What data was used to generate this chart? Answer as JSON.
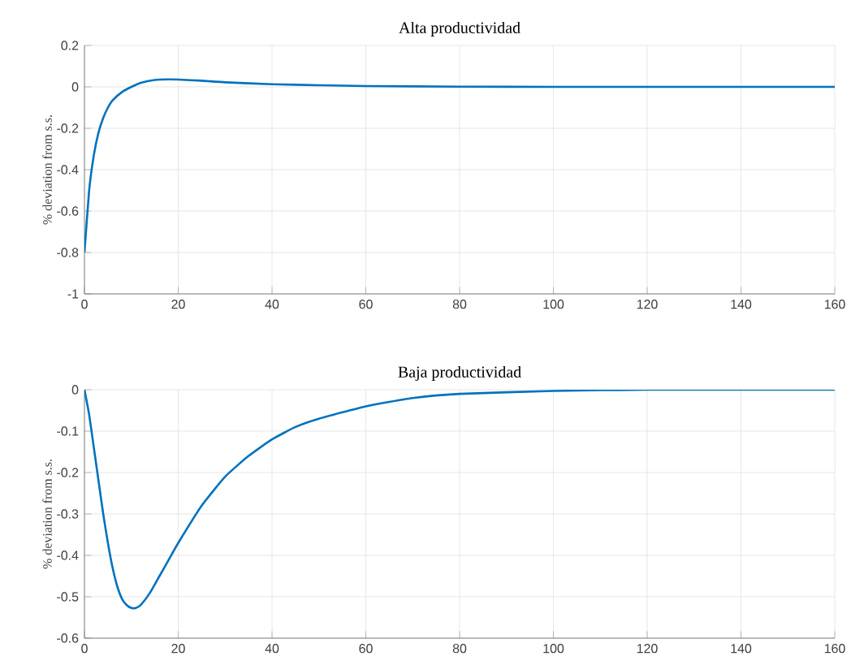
{
  "chart_data": [
    {
      "type": "line",
      "title": "Alta productividad",
      "ylabel": "% deviation from s.s.",
      "x": [
        0,
        1,
        2,
        3,
        4,
        5,
        6,
        8,
        10,
        12,
        15,
        18,
        20,
        25,
        30,
        40,
        50,
        60,
        80,
        100,
        120,
        160
      ],
      "series": [
        {
          "color": "#0072bd",
          "values": [
            -0.8,
            -0.5,
            -0.33,
            -0.22,
            -0.15,
            -0.1,
            -0.065,
            -0.025,
            0.0,
            0.02,
            0.033,
            0.036,
            0.035,
            0.03,
            0.022,
            0.013,
            0.008,
            0.004,
            0.001,
            0,
            0,
            0
          ]
        }
      ],
      "xlim": [
        0,
        160
      ],
      "ylim": [
        -1,
        0.2
      ],
      "xticks": [
        0,
        20,
        40,
        60,
        80,
        100,
        120,
        140,
        160
      ],
      "yticks": [
        -1,
        -0.8,
        -0.6,
        -0.4,
        -0.2,
        0,
        0.2
      ],
      "grid": true,
      "line_style": "solid"
    },
    {
      "type": "line",
      "title": "Baja productividad",
      "ylabel": "% deviation from s.s.",
      "x": [
        0,
        1,
        2,
        3,
        4,
        5,
        6,
        7,
        8,
        9,
        10,
        11,
        12,
        14,
        16,
        18,
        20,
        25,
        30,
        35,
        40,
        45,
        50,
        60,
        70,
        80,
        100,
        120,
        160
      ],
      "series": [
        {
          "color": "#0072bd",
          "values": [
            0,
            -0.06,
            -0.14,
            -0.22,
            -0.3,
            -0.37,
            -0.43,
            -0.475,
            -0.505,
            -0.52,
            -0.527,
            -0.527,
            -0.52,
            -0.49,
            -0.45,
            -0.41,
            -0.37,
            -0.28,
            -0.21,
            -0.16,
            -0.12,
            -0.09,
            -0.07,
            -0.04,
            -0.02,
            -0.01,
            -0.003,
            0,
            0
          ]
        }
      ],
      "xlim": [
        0,
        160
      ],
      "ylim": [
        -0.6,
        0
      ],
      "xticks": [
        0,
        20,
        40,
        60,
        80,
        100,
        120,
        140,
        160
      ],
      "yticks": [
        -0.6,
        -0.5,
        -0.4,
        -0.3,
        -0.2,
        -0.1,
        0
      ],
      "grid": true,
      "line_style": "solid"
    }
  ]
}
